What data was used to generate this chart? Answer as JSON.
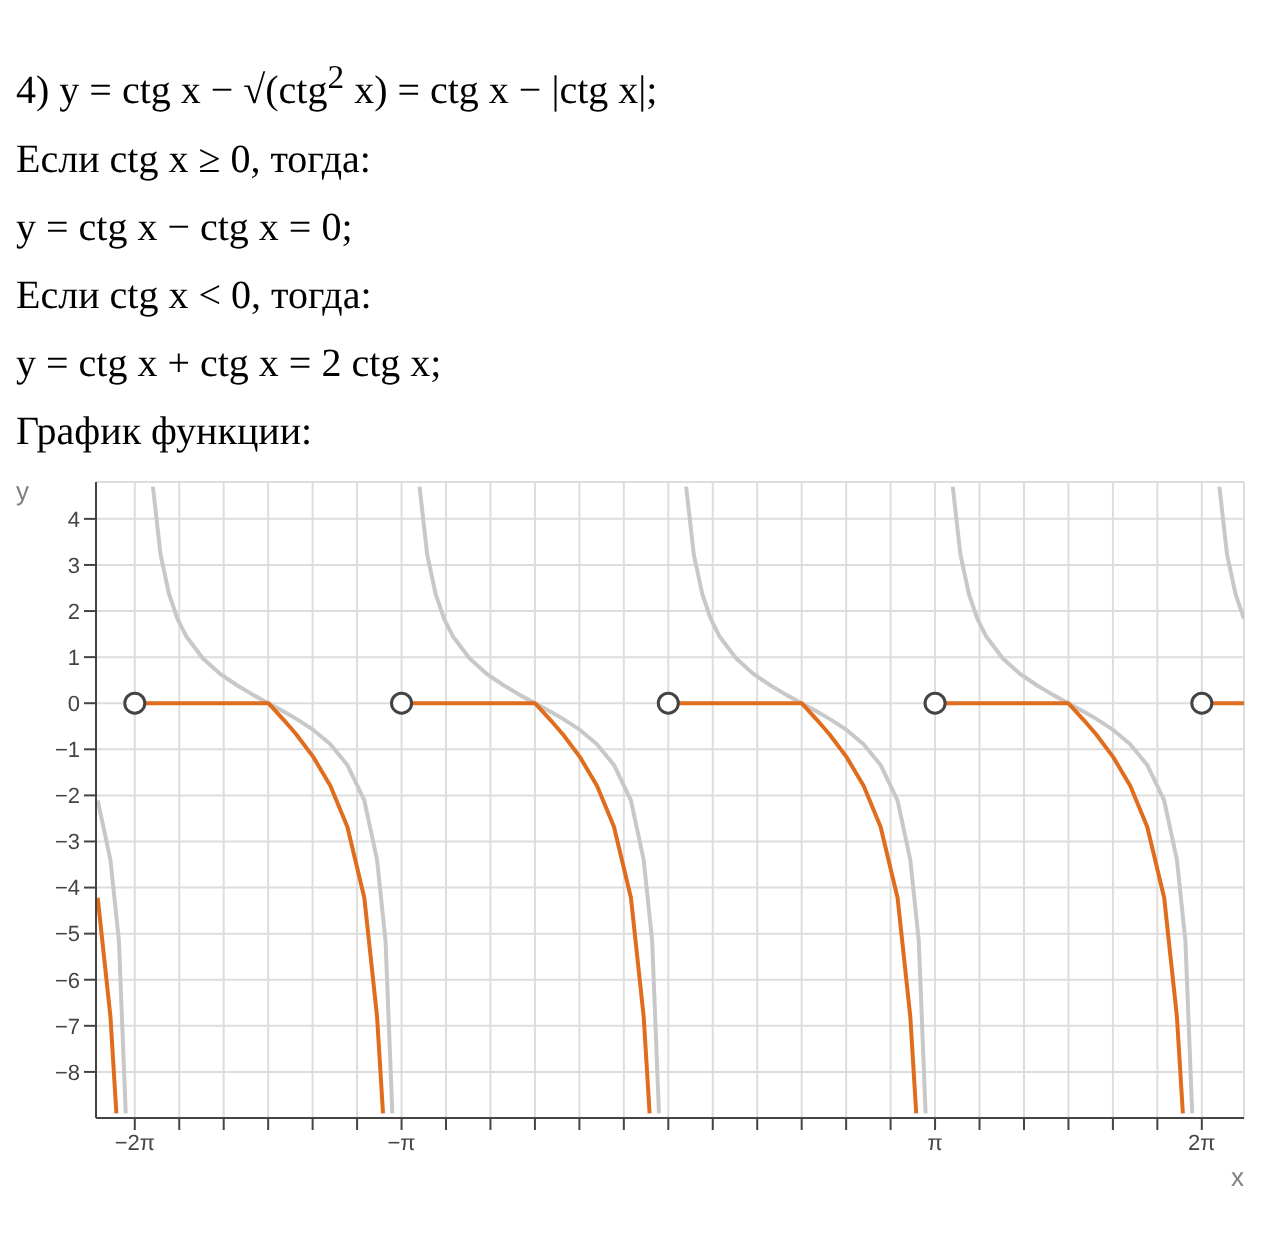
{
  "chart_data": {
    "type": "line",
    "xlabel": "x",
    "ylabel": "y",
    "annotations": [
      "4) y = ctg x − √(ctg$^{2}$ x) = ctg x − |ctg x|;",
      "Если ctg x ≥ 0, тогда:",
      "y = ctg x − ctg x = 0;",
      "Если ctg x < 0, тогда:",
      "y = ctg x + ctg x = 2 ctg x;",
      "График функции:"
    ],
    "xlim": [
      -6.74,
      6.78
    ],
    "ylim": [
      -9,
      4.8
    ],
    "xticks": [
      {
        "value": -6.2832,
        "label": "−2π"
      },
      {
        "value": -5.7596,
        "label": null
      },
      {
        "value": -5.236,
        "label": null
      },
      {
        "value": -4.7124,
        "label": null
      },
      {
        "value": -4.1888,
        "label": null
      },
      {
        "value": -3.6652,
        "label": null
      },
      {
        "value": -3.1416,
        "label": "−π"
      },
      {
        "value": -2.618,
        "label": null
      },
      {
        "value": -2.0944,
        "label": null
      },
      {
        "value": -1.5708,
        "label": null
      },
      {
        "value": -1.0472,
        "label": null
      },
      {
        "value": -0.5236,
        "label": null
      },
      {
        "value": 0,
        "label": null
      },
      {
        "value": 0.5236,
        "label": null
      },
      {
        "value": 1.0472,
        "label": null
      },
      {
        "value": 1.5708,
        "label": null
      },
      {
        "value": 2.0944,
        "label": null
      },
      {
        "value": 2.618,
        "label": null
      },
      {
        "value": 3.1416,
        "label": "π"
      },
      {
        "value": 3.6652,
        "label": null
      },
      {
        "value": 4.1888,
        "label": null
      },
      {
        "value": 4.7124,
        "label": null
      },
      {
        "value": 5.236,
        "label": null
      },
      {
        "value": 5.7596,
        "label": null
      },
      {
        "value": 6.2832,
        "label": "2π"
      }
    ],
    "yticks": [
      {
        "value": -8,
        "label": "−8"
      },
      {
        "value": -7,
        "label": "−7"
      },
      {
        "value": -6,
        "label": "−6"
      },
      {
        "value": -5,
        "label": "−5"
      },
      {
        "value": -4,
        "label": "−4"
      },
      {
        "value": -3,
        "label": "−3"
      },
      {
        "value": -2,
        "label": "−2"
      },
      {
        "value": -1,
        "label": "−1"
      },
      0,
      1,
      2,
      3,
      4
    ],
    "grid": true,
    "series": [
      {
        "color": "#c8c8c8",
        "x": [
          -6.72,
          -6.57,
          -6.47,
          -6.39,
          null,
          -6.07,
          -5.98,
          -5.88,
          -5.78,
          -5.68,
          -5.48,
          -5.28,
          -5.08,
          -4.88,
          -4.71,
          -4.53,
          -4.38,
          -4.18,
          -3.98,
          -3.78,
          -3.58,
          -3.43,
          -3.33,
          -3.25,
          null,
          -2.93,
          -2.84,
          -2.74,
          -2.64,
          -2.54,
          -2.34,
          -2.14,
          -1.94,
          -1.74,
          -1.57,
          -1.39,
          -1.24,
          -1.04,
          -0.84,
          -0.64,
          -0.44,
          -0.29,
          -0.19,
          -0.11,
          null,
          0.21,
          0.3,
          0.4,
          0.5,
          0.6,
          0.8,
          1.0,
          1.2,
          1.4,
          1.57,
          1.75,
          1.9,
          2.1,
          2.3,
          2.5,
          2.7,
          2.85,
          2.95,
          3.03,
          null,
          3.35,
          3.44,
          3.54,
          3.64,
          3.74,
          3.94,
          4.14,
          4.34,
          4.54,
          4.71,
          4.89,
          5.04,
          5.24,
          5.44,
          5.64,
          5.84,
          5.99,
          6.09,
          6.17,
          null,
          6.49,
          6.58,
          6.68,
          6.78
        ],
        "values": [
          -2.11,
          -3.4,
          -5.16,
          -8.9,
          null,
          4.7,
          3.23,
          2.37,
          1.83,
          1.46,
          0.97,
          0.64,
          0.39,
          0.17,
          0,
          -0.18,
          -0.34,
          -0.58,
          -0.89,
          -1.34,
          -2.11,
          -3.4,
          -5.16,
          -8.9,
          null,
          4.7,
          3.23,
          2.37,
          1.83,
          1.46,
          0.97,
          0.64,
          0.39,
          0.17,
          0,
          -0.18,
          -0.34,
          -0.58,
          -0.89,
          -1.34,
          -2.11,
          -3.4,
          -5.16,
          -8.9,
          null,
          4.7,
          3.23,
          2.37,
          1.83,
          1.46,
          0.97,
          0.64,
          0.39,
          0.17,
          0,
          -0.18,
          -0.34,
          -0.58,
          -0.89,
          -1.34,
          -2.11,
          -3.4,
          -5.16,
          -8.9,
          null,
          4.7,
          3.23,
          2.37,
          1.83,
          1.46,
          0.97,
          0.64,
          0.39,
          0.17,
          0,
          -0.18,
          -0.34,
          -0.58,
          -0.89,
          -1.34,
          -2.11,
          -3.4,
          -5.16,
          -8.9,
          null,
          4.7,
          3.23,
          2.37,
          1.83
        ]
      },
      {
        "color": "#e06c1e",
        "x": [
          -6.72,
          -6.57,
          -6.5,
          null,
          -6.28,
          -4.71,
          -4.53,
          -4.38,
          -4.18,
          -3.98,
          -3.78,
          -3.58,
          -3.43,
          -3.36,
          null,
          -3.14,
          -1.57,
          -1.39,
          -1.24,
          -1.04,
          -0.84,
          -0.64,
          -0.44,
          -0.29,
          -0.22,
          null,
          0,
          1.57,
          1.75,
          1.9,
          2.1,
          2.3,
          2.5,
          2.7,
          2.85,
          2.92,
          null,
          3.14,
          4.71,
          4.89,
          5.04,
          5.24,
          5.44,
          5.64,
          5.84,
          5.99,
          6.06,
          null,
          6.28,
          6.78
        ],
        "values": [
          -4.22,
          -6.8,
          -8.9,
          null,
          0,
          0,
          -0.36,
          -0.68,
          -1.17,
          -1.79,
          -2.68,
          -4.22,
          -6.8,
          -8.9,
          null,
          0,
          0,
          -0.36,
          -0.68,
          -1.17,
          -1.79,
          -2.68,
          -4.22,
          -6.8,
          -8.9,
          null,
          0,
          0,
          -0.36,
          -0.68,
          -1.17,
          -1.79,
          -2.68,
          -4.22,
          -6.8,
          -8.9,
          null,
          0,
          0,
          -0.36,
          -0.68,
          -1.17,
          -1.79,
          -2.68,
          -4.22,
          -6.8,
          -8.9,
          null,
          0,
          0
        ]
      },
      {
        "type": "scatter",
        "color": "#444444",
        "marker": "circle",
        "x": [
          -6.2832,
          -3.1416,
          0,
          3.1416,
          6.2832
        ],
        "values": [
          0,
          0,
          0,
          0,
          0
        ]
      }
    ]
  }
}
